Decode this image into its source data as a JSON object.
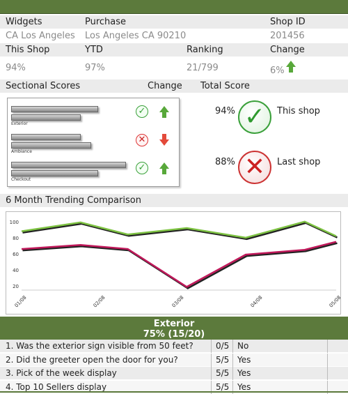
{
  "header": {
    "labels": [
      "Widgets",
      "Purchase",
      "Shop ID"
    ],
    "values": [
      "CA Los Angeles",
      "Los Angeles CA 90210",
      "201456"
    ]
  },
  "stats": {
    "labels": [
      "This Shop",
      "YTD",
      "Ranking",
      "Change"
    ],
    "values": [
      "94%",
      "97%",
      "21/799",
      "6%"
    ]
  },
  "sectional": {
    "title": "Sectional Scores",
    "change_label": "Change",
    "total_label": "Total Score",
    "bars": [
      {
        "label": "Exterior",
        "status": "ok",
        "trend": "up",
        "level": 0.72
      },
      {
        "label": "Ambiance",
        "status": "bad",
        "trend": "down",
        "level": 0.55
      },
      {
        "label": "Checkout",
        "status": "ok",
        "trend": "up",
        "level": 0.95
      }
    ],
    "totals": [
      {
        "percent": "94%",
        "caption": "This shop",
        "status": "ok"
      },
      {
        "percent": "88%",
        "caption": "Last shop",
        "status": "bad"
      }
    ]
  },
  "trend": {
    "title": "6 Month Trending Comparison"
  },
  "chart_data": {
    "type": "line",
    "x": [
      "01/08",
      "02/08",
      "03/08",
      "04/08",
      "05/08"
    ],
    "xvals": [
      0,
      2,
      4,
      6,
      8
    ],
    "ylim": [
      15,
      105
    ],
    "yticks": [
      20,
      40,
      60,
      80,
      100
    ],
    "series": [
      {
        "color": "#7dc242",
        "shadow": "#222222",
        "points": [
          [
            0,
            88
          ],
          [
            1.5,
            99
          ],
          [
            2.7,
            84
          ],
          [
            4.2,
            92
          ],
          [
            5.7,
            80
          ],
          [
            7.2,
            100
          ],
          [
            8,
            82
          ]
        ]
      },
      {
        "color": "#c0185a",
        "shadow": "#222222",
        "points": [
          [
            0,
            66
          ],
          [
            1.5,
            71
          ],
          [
            2.7,
            66
          ],
          [
            4.2,
            19
          ],
          [
            5.7,
            59
          ],
          [
            7.2,
            65
          ],
          [
            8,
            75
          ]
        ]
      }
    ]
  },
  "section": {
    "title": "Exterior",
    "score": "75% (15/20)",
    "questions": [
      {
        "q": "1. Was the exterior sign visible from 50 feet?",
        "score": "0/5",
        "answer": "No"
      },
      {
        "q": "2. Did the greeter open the door for you?",
        "score": "5/5",
        "answer": "Yes"
      },
      {
        "q": "3. Pick of the week display",
        "score": "5/5",
        "answer": "Yes"
      },
      {
        "q": "4. Top 10 Sellers display",
        "score": "5/5",
        "answer": "Yes"
      }
    ]
  },
  "colors": {
    "brand": "#5c7a3c",
    "ok": "#3aa03a",
    "bad": "#cc2222",
    "line_good": "#7dc242",
    "line_bad": "#c0185a"
  }
}
